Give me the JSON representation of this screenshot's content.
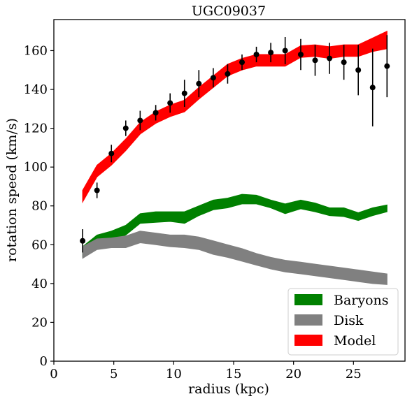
{
  "chart_data": {
    "type": "line",
    "title": "UGC09037",
    "xlabel": "radius (kpc)",
    "ylabel": "rotation speed (km/s)",
    "xlim": [
      0,
      29.3
    ],
    "ylim": [
      0,
      176
    ],
    "xticks": [
      0,
      5,
      10,
      15,
      20,
      25
    ],
    "yticks": [
      0,
      20,
      40,
      60,
      80,
      100,
      120,
      140,
      160
    ],
    "grid": false,
    "legend_position": "lower-right",
    "x": [
      2.4,
      3.6,
      4.8,
      6.0,
      7.2,
      8.5,
      9.7,
      10.9,
      12.1,
      13.3,
      14.5,
      15.7,
      16.9,
      18.1,
      19.3,
      20.6,
      21.8,
      23.0,
      24.2,
      25.4,
      26.6,
      27.8
    ],
    "series": [
      {
        "name": "Baryons",
        "kind": "band",
        "color": "#008000",
        "lower": [
          54,
          61,
          62,
          65,
          71,
          71.5,
          72,
          71,
          75,
          78,
          79,
          81,
          81,
          79,
          76,
          78.5,
          77,
          75,
          74.5,
          72.5,
          75,
          77
        ],
        "upper": [
          59,
          65,
          67,
          70,
          76,
          77,
          77,
          77,
          80,
          83,
          84,
          86,
          85.5,
          83,
          81,
          83,
          81.5,
          79,
          79,
          76.5,
          79,
          80.5
        ]
      },
      {
        "name": "Disk",
        "kind": "band",
        "color": "#808080",
        "lower": [
          53,
          57.5,
          58.5,
          58.5,
          61,
          60,
          59,
          58.5,
          57.5,
          55,
          53.5,
          51.5,
          49.5,
          47.5,
          46,
          45,
          44,
          43,
          42,
          41,
          40,
          39.5
        ],
        "upper": [
          59,
          63,
          63.5,
          64.5,
          67,
          66,
          65,
          65,
          64,
          62,
          60,
          58,
          55.5,
          53.5,
          52,
          51,
          50,
          49,
          48,
          47,
          46,
          45
        ]
      },
      {
        "name": "Model",
        "kind": "band",
        "color": "#ff0000",
        "lower": [
          82,
          95,
          101,
          108.5,
          117,
          122.5,
          126,
          128.5,
          135,
          141,
          147,
          150,
          152,
          152,
          152,
          156.5,
          157,
          156,
          157,
          157,
          159.5,
          161
        ],
        "upper": [
          88,
          101,
          107,
          114.5,
          123,
          128.5,
          132,
          134.5,
          141,
          147,
          153,
          156,
          158,
          158,
          158,
          162.5,
          163,
          162,
          163,
          163,
          166.5,
          170
        ]
      },
      {
        "name": "",
        "kind": "points",
        "color": "#000000",
        "y": [
          62,
          88,
          107,
          120,
          124,
          128,
          133,
          138,
          143,
          146,
          148,
          154,
          158,
          159,
          160,
          158,
          155,
          156,
          154,
          150,
          141,
          152
        ],
        "err": [
          6,
          4,
          4.5,
          4,
          5,
          4,
          5,
          7,
          7,
          5,
          5,
          4,
          4,
          5,
          7,
          8,
          8,
          8,
          9,
          13,
          20,
          16
        ]
      }
    ]
  }
}
